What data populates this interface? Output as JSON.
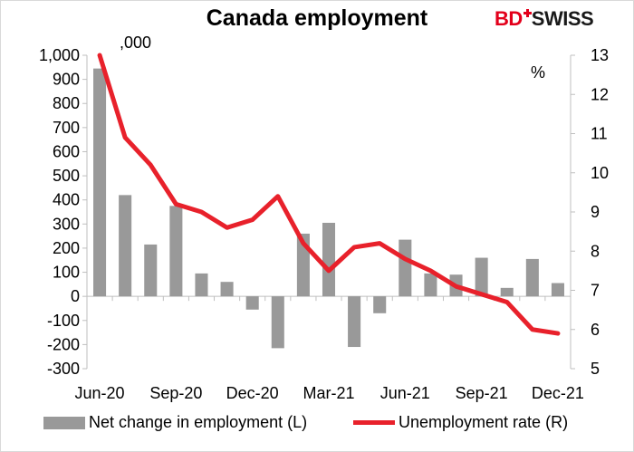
{
  "title": "Canada employment",
  "logo": {
    "text_bd": "BD",
    "text_swiss": "SWISS"
  },
  "left_unit": ",000",
  "right_unit": "%",
  "colors": {
    "bars": "#999999",
    "line": "#e8212b",
    "axis": "#bfbfbf",
    "logo_red": "#e3001b"
  },
  "chart_data": {
    "type": "bar",
    "x": [
      "Jun-20",
      "Jul-20",
      "Aug-20",
      "Sep-20",
      "Oct-20",
      "Nov-20",
      "Dec-20",
      "Jan-21",
      "Feb-21",
      "Mar-21",
      "Apr-21",
      "May-21",
      "Jun-21",
      "Jul-21",
      "Aug-21",
      "Sep-21",
      "Oct-21",
      "Nov-21",
      "Dec-21"
    ],
    "x_tick_labels": [
      "Jun-20",
      "Sep-20",
      "Dec-20",
      "Mar-21",
      "Jun-21",
      "Sep-21",
      "Dec-21"
    ],
    "series": [
      {
        "name": "Net change in employment (L)",
        "type": "bar",
        "axis": "left",
        "values": [
          945,
          420,
          215,
          375,
          95,
          60,
          -55,
          -215,
          260,
          305,
          -210,
          -70,
          235,
          95,
          90,
          160,
          35,
          155,
          55
        ]
      },
      {
        "name": "Unemployment rate (R)",
        "type": "line",
        "axis": "right",
        "values": [
          13.0,
          10.9,
          10.2,
          9.2,
          9.0,
          8.6,
          8.8,
          9.4,
          8.2,
          7.5,
          8.1,
          8.2,
          7.8,
          7.5,
          7.1,
          6.9,
          6.7,
          6.0,
          5.9
        ]
      }
    ],
    "left_axis": {
      "ylim": [
        -300,
        1000
      ],
      "ticks": [
        -300,
        -200,
        -100,
        0,
        100,
        200,
        300,
        400,
        500,
        600,
        700,
        800,
        900,
        1000
      ],
      "tick_labels": [
        "-300",
        "-200",
        "-100",
        "0",
        "100",
        "200",
        "300",
        "400",
        "500",
        "600",
        "700",
        "800",
        "900",
        "1,000"
      ]
    },
    "right_axis": {
      "ylim": [
        5,
        13
      ],
      "ticks": [
        5,
        6,
        7,
        8,
        9,
        10,
        11,
        12,
        13
      ],
      "tick_labels": [
        "5",
        "6",
        "7",
        "8",
        "9",
        "10",
        "11",
        "12",
        "13"
      ]
    },
    "grid": false,
    "legend_position": "bottom"
  }
}
